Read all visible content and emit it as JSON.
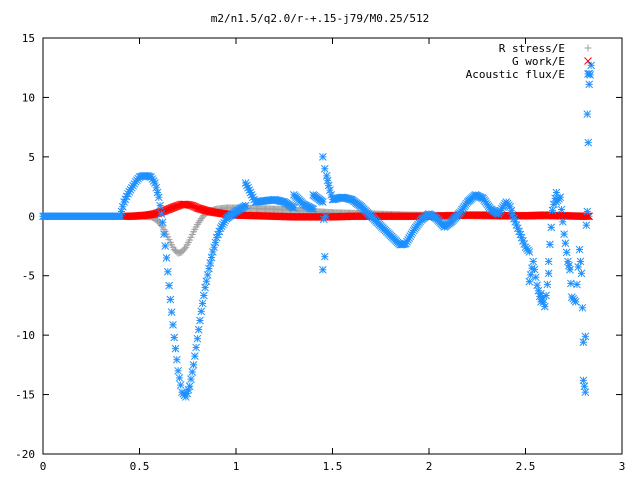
{
  "chart_data": {
    "type": "scatter",
    "title": "m2/n1.5/q2.0/r-+.15-j79/M0.25/512",
    "xlabel": "",
    "ylabel": "",
    "xlim": [
      0,
      3
    ],
    "ylim": [
      -20,
      15
    ],
    "xticks": [
      0,
      0.5,
      1,
      1.5,
      2,
      2.5,
      3
    ],
    "xtick_labels": [
      "0",
      "0.5",
      "1",
      "1.5",
      "2",
      "2.5",
      "3"
    ],
    "yticks": [
      -20,
      -15,
      -10,
      -5,
      0,
      5,
      10,
      15
    ],
    "ytick_labels": [
      "-20",
      "-15",
      "-10",
      "-5",
      "0",
      "5",
      "10",
      "15"
    ],
    "grid": false,
    "legend_position": "top-right",
    "series": [
      {
        "name": "R stress/E",
        "marker": "plus",
        "color": "#a0a0a0",
        "points": [
          [
            0.0,
            0.0
          ],
          [
            0.1,
            0.0
          ],
          [
            0.2,
            0.0
          ],
          [
            0.3,
            0.0
          ],
          [
            0.4,
            0.0
          ],
          [
            0.44,
            0.0
          ],
          [
            0.48,
            0.0
          ],
          [
            0.52,
            0.0
          ],
          [
            0.56,
            -0.05
          ],
          [
            0.58,
            -0.2
          ],
          [
            0.6,
            -0.5
          ],
          [
            0.62,
            -0.9
          ],
          [
            0.64,
            -1.5
          ],
          [
            0.66,
            -2.2
          ],
          [
            0.68,
            -2.8
          ],
          [
            0.7,
            -3.1
          ],
          [
            0.72,
            -3.0
          ],
          [
            0.74,
            -2.6
          ],
          [
            0.76,
            -2.0
          ],
          [
            0.78,
            -1.3
          ],
          [
            0.8,
            -0.7
          ],
          [
            0.82,
            -0.2
          ],
          [
            0.84,
            0.2
          ],
          [
            0.86,
            0.4
          ],
          [
            0.9,
            0.6
          ],
          [
            0.95,
            0.7
          ],
          [
            1.0,
            0.7
          ],
          [
            1.05,
            0.7
          ],
          [
            1.1,
            0.65
          ],
          [
            1.2,
            0.6
          ],
          [
            1.3,
            0.5
          ],
          [
            1.4,
            0.4
          ],
          [
            1.5,
            0.3
          ],
          [
            1.6,
            0.25
          ],
          [
            1.7,
            0.2
          ],
          [
            1.8,
            0.15
          ],
          [
            1.9,
            0.1
          ],
          [
            2.0,
            0.1
          ],
          [
            2.1,
            0.05
          ],
          [
            2.2,
            0.05
          ],
          [
            2.3,
            0.0
          ],
          [
            2.4,
            0.0
          ],
          [
            2.5,
            0.0
          ],
          [
            2.6,
            0.0
          ],
          [
            2.7,
            0.0
          ],
          [
            2.8,
            0.0
          ],
          [
            2.83,
            0.0
          ]
        ]
      },
      {
        "name": "G work/E",
        "marker": "cross",
        "color": "#ff0000",
        "points": [
          [
            0.42,
            0.0
          ],
          [
            0.46,
            0.0
          ],
          [
            0.5,
            0.05
          ],
          [
            0.54,
            0.1
          ],
          [
            0.58,
            0.2
          ],
          [
            0.62,
            0.4
          ],
          [
            0.66,
            0.65
          ],
          [
            0.7,
            0.9
          ],
          [
            0.72,
            1.0
          ],
          [
            0.74,
            1.0
          ],
          [
            0.76,
            0.95
          ],
          [
            0.78,
            0.85
          ],
          [
            0.8,
            0.7
          ],
          [
            0.84,
            0.5
          ],
          [
            0.88,
            0.35
          ],
          [
            0.92,
            0.25
          ],
          [
            0.96,
            0.15
          ],
          [
            1.0,
            0.1
          ],
          [
            1.1,
            0.05
          ],
          [
            1.2,
            0.0
          ],
          [
            1.3,
            -0.05
          ],
          [
            1.4,
            -0.05
          ],
          [
            1.5,
            -0.05
          ],
          [
            1.6,
            0.0
          ],
          [
            1.7,
            0.0
          ],
          [
            1.8,
            0.0
          ],
          [
            1.9,
            0.0
          ],
          [
            2.0,
            0.0
          ],
          [
            2.1,
            0.05
          ],
          [
            2.2,
            0.1
          ],
          [
            2.3,
            0.1
          ],
          [
            2.4,
            0.05
          ],
          [
            2.5,
            0.05
          ],
          [
            2.6,
            0.1
          ],
          [
            2.7,
            0.05
          ],
          [
            2.8,
            0.0
          ],
          [
            2.83,
            0.0
          ]
        ]
      },
      {
        "name": "Acoustic flux/E",
        "marker": "star",
        "color": "#1e90ff",
        "points": [
          [
            0.0,
            0.0
          ],
          [
            0.05,
            0.0
          ],
          [
            0.1,
            0.0
          ],
          [
            0.15,
            0.0
          ],
          [
            0.2,
            0.0
          ],
          [
            0.25,
            0.0
          ],
          [
            0.3,
            0.0
          ],
          [
            0.35,
            0.0
          ],
          [
            0.4,
            0.0
          ],
          [
            0.42,
            1.2
          ],
          [
            0.44,
            1.9
          ],
          [
            0.46,
            2.4
          ],
          [
            0.48,
            2.9
          ],
          [
            0.5,
            3.3
          ],
          [
            0.52,
            3.4
          ],
          [
            0.54,
            3.4
          ],
          [
            0.56,
            3.3
          ],
          [
            0.58,
            2.8
          ],
          [
            0.6,
            1.6
          ],
          [
            0.62,
            -0.5
          ],
          [
            0.64,
            -3.5
          ],
          [
            0.66,
            -7.0
          ],
          [
            0.68,
            -10.2
          ],
          [
            0.7,
            -13.0
          ],
          [
            0.72,
            -14.8
          ],
          [
            0.74,
            -15.2
          ],
          [
            0.76,
            -14.3
          ],
          [
            0.78,
            -12.5
          ],
          [
            0.8,
            -10.3
          ],
          [
            0.82,
            -8.0
          ],
          [
            0.84,
            -6.0
          ],
          [
            0.86,
            -4.4
          ],
          [
            0.88,
            -3.0
          ],
          [
            0.9,
            -1.8
          ],
          [
            0.92,
            -1.0
          ],
          [
            0.95,
            -0.2
          ],
          [
            1.0,
            0.4
          ],
          [
            1.05,
            0.9
          ],
          [
            1.1,
            1.2
          ],
          [
            1.15,
            1.3
          ],
          [
            1.2,
            1.4
          ],
          [
            1.25,
            1.2
          ],
          [
            1.3,
            0.7
          ],
          [
            1.35,
            1.0
          ],
          [
            1.4,
            0.6
          ],
          [
            1.45,
            1.2
          ],
          [
            1.5,
            1.4
          ],
          [
            1.55,
            1.6
          ],
          [
            1.6,
            1.4
          ],
          [
            1.65,
            0.8
          ],
          [
            1.7,
            0.0
          ],
          [
            1.75,
            -0.8
          ],
          [
            1.8,
            -1.6
          ],
          [
            1.85,
            -2.4
          ],
          [
            1.88,
            -2.3
          ],
          [
            1.92,
            -1.2
          ],
          [
            1.96,
            -0.3
          ],
          [
            2.0,
            0.2
          ],
          [
            2.04,
            -0.2
          ],
          [
            2.08,
            -0.9
          ],
          [
            2.12,
            -0.4
          ],
          [
            2.16,
            0.3
          ],
          [
            2.2,
            1.2
          ],
          [
            2.24,
            1.8
          ],
          [
            2.28,
            1.5
          ],
          [
            2.32,
            0.6
          ],
          [
            2.36,
            0.2
          ],
          [
            2.4,
            1.2
          ],
          [
            2.42,
            0.8
          ],
          [
            2.44,
            -0.2
          ],
          [
            2.46,
            -1.0
          ],
          [
            2.48,
            -1.8
          ],
          [
            2.5,
            -2.6
          ],
          [
            2.52,
            -3.0
          ],
          [
            2.54,
            -3.8
          ],
          [
            2.56,
            -5.8
          ],
          [
            2.58,
            -7.2
          ],
          [
            2.6,
            -7.6
          ],
          [
            2.62,
            -4.8
          ],
          [
            2.64,
            0.5
          ],
          [
            2.66,
            2.0
          ],
          [
            2.68,
            1.6
          ],
          [
            2.7,
            -1.5
          ],
          [
            2.72,
            -3.8
          ],
          [
            2.74,
            -6.8
          ],
          [
            2.76,
            -7.2
          ],
          [
            2.78,
            -2.8
          ],
          [
            2.8,
            -10.6
          ],
          [
            2.82,
            8.6
          ],
          [
            2.83,
            12.0
          ],
          [
            1.05,
            2.8
          ],
          [
            1.3,
            1.8
          ],
          [
            1.4,
            1.8
          ],
          [
            1.45,
            5.0
          ],
          [
            1.45,
            -4.5
          ],
          [
            1.46,
            4.0
          ],
          [
            1.47,
            3.4
          ],
          [
            1.48,
            2.6
          ],
          [
            1.46,
            -3.4
          ],
          [
            2.52,
            -5.5
          ],
          [
            2.58,
            -6.5
          ],
          [
            2.62,
            -3.8
          ],
          [
            2.66,
            1.2
          ],
          [
            2.73,
            -4.5
          ],
          [
            2.79,
            -4.8
          ],
          [
            2.8,
            -13.8
          ],
          [
            2.81,
            -14.8
          ],
          [
            2.81,
            -10.1
          ],
          [
            2.82,
            0.4
          ],
          [
            2.83,
            11.1
          ],
          [
            2.84,
            12.7
          ]
        ]
      }
    ]
  }
}
